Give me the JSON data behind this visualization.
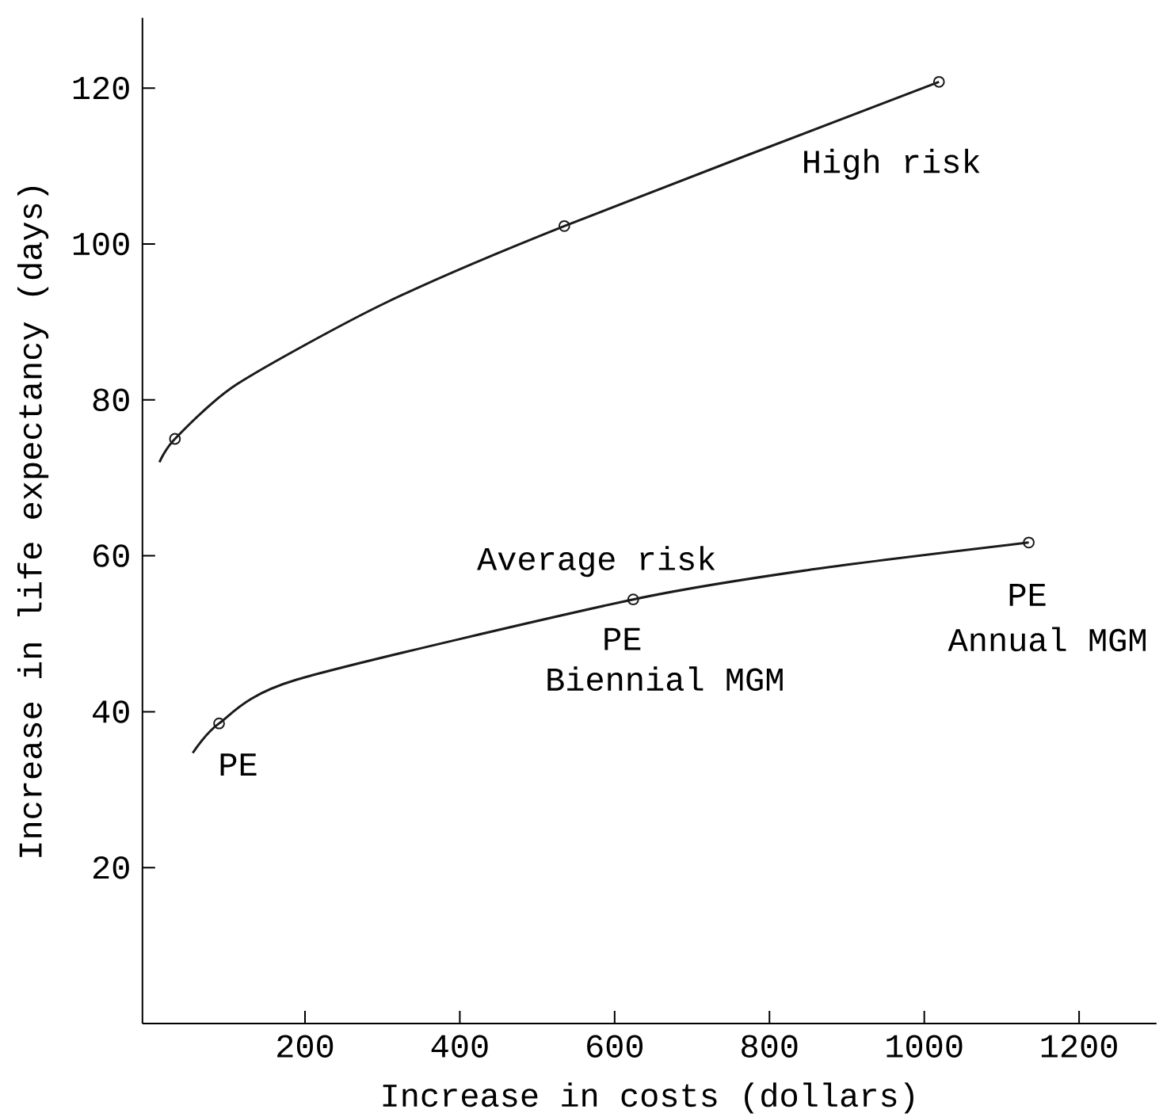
{
  "chart_data": {
    "type": "line",
    "xlabel": "Increase in costs (dollars)",
    "ylabel": "Increase in life expectancy (days)",
    "xlim": [
      -10,
      1300
    ],
    "ylim": [
      0,
      129
    ],
    "xticks": [
      200,
      400,
      600,
      800,
      1000,
      1200
    ],
    "yticks": [
      20,
      40,
      60,
      80,
      100,
      120
    ],
    "series": [
      {
        "name": "High risk",
        "marker": "none",
        "color": "#1a1a1a",
        "x": [
          12,
          32,
          112,
          303,
          535,
          1019
        ],
        "values": [
          72,
          75,
          82,
          92.4,
          102.3,
          120.8
        ]
      },
      {
        "type": "scatter",
        "marker": "circle",
        "color": "#1a1a1a",
        "x": [
          32,
          535,
          1019
        ],
        "values": [
          75,
          102.3,
          120.8
        ]
      },
      {
        "name": "Average risk",
        "marker": "none",
        "color": "#1a1a1a",
        "x": [
          55,
          89,
          189,
          624,
          859,
          1135
        ],
        "values": [
          34.7,
          38.5,
          44.1,
          54.4,
          58.3,
          61.7
        ]
      },
      {
        "type": "scatter",
        "marker": "circle",
        "color": "#1a1a1a",
        "x": [
          89,
          624,
          1135
        ],
        "values": [
          38.5,
          54.4,
          61.7
        ]
      }
    ],
    "annotations": [
      "PE",
      "PE",
      "Biennial MGM",
      "PE",
      "Annual MGM"
    ]
  }
}
